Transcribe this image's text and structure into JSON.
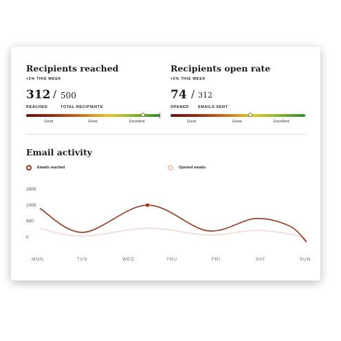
{
  "metrics": [
    {
      "title": "Recipients reached",
      "subtitle": "+2% THIS WEEK",
      "value": "312",
      "separator": "/",
      "total": "500",
      "value_caption": "REACHED",
      "total_caption": "TOTAL RECIPIENTS",
      "scale_labels": [
        "Good",
        "Great",
        "Excellent"
      ],
      "marker_fraction": 0.87
    },
    {
      "title": "Recipients open rate",
      "subtitle": "+2% THIS WEEK",
      "value": "74",
      "separator": "/",
      "total": "312",
      "value_caption": "OPENED",
      "total_caption": "EMAILS SENT",
      "scale_labels": [
        "Good",
        "Great",
        "Excellent"
      ],
      "marker_fraction": 0.59
    }
  ],
  "activity": {
    "title": "Email activity",
    "legend": [
      {
        "label": "Emails reached",
        "color": "#a8300f"
      },
      {
        "label": "Opened emails",
        "color": "#f4c4b2"
      }
    ]
  },
  "chart_data": {
    "type": "line",
    "categories": [
      "MON",
      "TUS",
      "WED",
      "THU",
      "FRI",
      "SAT",
      "SUN"
    ],
    "y_ticks": [
      "1500",
      "1000",
      "500",
      "0"
    ],
    "ylim": [
      0,
      1500
    ],
    "x_range": [
      0,
      6.2
    ],
    "grid": false,
    "series": [
      {
        "name": "Emails reached",
        "color": "#a8300f",
        "highlight_point": [
          2.5,
          1000
        ],
        "points": [
          [
            0,
            900
          ],
          [
            1,
            150
          ],
          [
            2.5,
            1000
          ],
          [
            3.9,
            200
          ],
          [
            5,
            580
          ],
          [
            5.8,
            350
          ],
          [
            6.2,
            -150
          ]
        ]
      },
      {
        "name": "Opened emails",
        "color": "#f8d4c7",
        "points": [
          [
            0,
            270
          ],
          [
            1,
            30
          ],
          [
            2.5,
            280
          ],
          [
            3.9,
            70
          ],
          [
            5,
            210
          ],
          [
            5.8,
            100
          ],
          [
            6.2,
            -60
          ]
        ]
      }
    ]
  }
}
